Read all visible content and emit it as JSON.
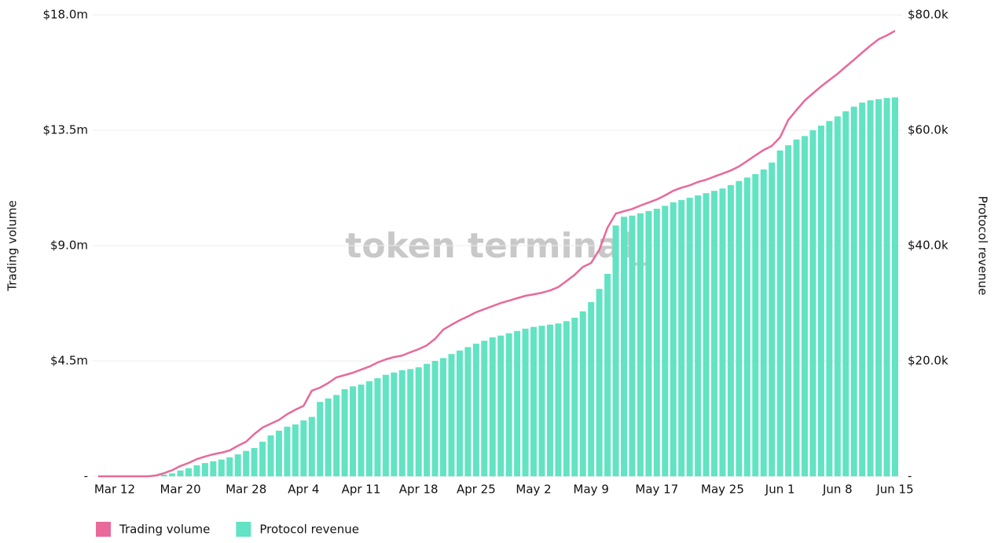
{
  "chart_data": {
    "type": "bar",
    "watermark": "token terminal_",
    "y_label": "Trading volume",
    "y2_label": "Protocol revenue",
    "categories": [
      null,
      null,
      "Mar 12",
      null,
      null,
      null,
      null,
      null,
      null,
      null,
      "Mar 20",
      null,
      null,
      null,
      null,
      null,
      null,
      null,
      "Mar 28",
      null,
      null,
      null,
      null,
      null,
      null,
      "Apr 4",
      null,
      null,
      null,
      null,
      null,
      null,
      "Apr 11",
      null,
      null,
      null,
      null,
      null,
      null,
      "Apr 18",
      null,
      null,
      null,
      null,
      null,
      null,
      "Apr 25",
      null,
      null,
      null,
      null,
      null,
      null,
      "May 2",
      null,
      null,
      null,
      null,
      null,
      null,
      "May 9",
      null,
      null,
      null,
      null,
      null,
      null,
      null,
      "May 17",
      null,
      null,
      null,
      null,
      null,
      null,
      null,
      "May 25",
      null,
      null,
      null,
      null,
      null,
      null,
      "Jun 1",
      null,
      null,
      null,
      null,
      null,
      null,
      "Jun 8",
      null,
      null,
      null,
      null,
      null,
      null,
      "Jun 15"
    ],
    "series": [
      {
        "name": "Trading volume",
        "type": "line",
        "color": "#e8699a",
        "values": [
          0,
          0,
          0,
          0,
          0,
          0,
          0,
          0.03,
          0.12,
          0.24,
          0.4,
          0.52,
          0.67,
          0.77,
          0.86,
          0.92,
          1.01,
          1.19,
          1.35,
          1.65,
          1.9,
          2.05,
          2.2,
          2.42,
          2.6,
          2.75,
          3.34,
          3.46,
          3.64,
          3.86,
          3.95,
          4.04,
          4.16,
          4.28,
          4.44,
          4.56,
          4.65,
          4.71,
          4.84,
          4.96,
          5.11,
          5.36,
          5.72,
          5.91,
          6.09,
          6.24,
          6.4,
          6.52,
          6.64,
          6.76,
          6.85,
          6.95,
          7.04,
          7.1,
          7.16,
          7.25,
          7.38,
          7.62,
          7.86,
          8.17,
          8.32,
          8.84,
          9.7,
          10.25,
          10.34,
          10.43,
          10.56,
          10.68,
          10.8,
          10.96,
          11.14,
          11.26,
          11.35,
          11.48,
          11.57,
          11.69,
          11.81,
          11.93,
          12.09,
          12.3,
          12.52,
          12.73,
          12.89,
          13.22,
          13.9,
          14.29,
          14.66,
          14.94,
          15.21,
          15.46,
          15.7,
          15.98,
          16.25,
          16.53,
          16.8,
          17.05,
          17.2,
          17.38
        ]
      },
      {
        "name": "Protocol revenue",
        "type": "bar",
        "axis": "y2",
        "color": "#62e3c3",
        "values": [
          0,
          0,
          0,
          0,
          0,
          0,
          0,
          0.1,
          0.3,
          0.5,
          1.0,
          1.4,
          1.9,
          2.3,
          2.6,
          2.9,
          3.3,
          3.8,
          4.4,
          4.9,
          6.0,
          7.1,
          7.9,
          8.6,
          9.0,
          9.7,
          10.3,
          12.9,
          13.5,
          14.1,
          15.1,
          15.6,
          15.9,
          16.5,
          17.0,
          17.6,
          18.0,
          18.4,
          18.6,
          18.9,
          19.5,
          20.0,
          20.5,
          21.2,
          21.8,
          22.4,
          23.0,
          23.5,
          24.1,
          24.4,
          24.8,
          25.2,
          25.6,
          25.9,
          26.1,
          26.3,
          26.5,
          26.9,
          27.5,
          28.6,
          30.2,
          32.5,
          35.1,
          43.5,
          45.0,
          45.2,
          45.6,
          46.0,
          46.4,
          46.9,
          47.5,
          47.9,
          48.3,
          48.7,
          49.1,
          49.5,
          49.9,
          50.5,
          51.2,
          51.8,
          52.4,
          53.2,
          54.4,
          56.5,
          57.4,
          58.4,
          59.0,
          60.0,
          60.8,
          61.6,
          62.4,
          63.3,
          64.1,
          64.8,
          65.2,
          65.4,
          65.6,
          65.7
        ]
      }
    ],
    "ylim": [
      0,
      18
    ],
    "yticks": [
      {
        "value": 0,
        "label": "-"
      },
      {
        "value": 4.5,
        "label": "$4.5m"
      },
      {
        "value": 9,
        "label": "$9.0m"
      },
      {
        "value": 13.5,
        "label": "$13.5m"
      },
      {
        "value": 18,
        "label": "$18.0m"
      }
    ],
    "y2lim": [
      0,
      80
    ],
    "y2ticks": [
      {
        "value": 0,
        "label": "-"
      },
      {
        "value": 20,
        "label": "$20.0k"
      },
      {
        "value": 40,
        "label": "$40.0k"
      },
      {
        "value": 60,
        "label": "$60.0k"
      },
      {
        "value": 80,
        "label": "$80.0k"
      }
    ],
    "grid": true,
    "legend": "bottom-left"
  }
}
